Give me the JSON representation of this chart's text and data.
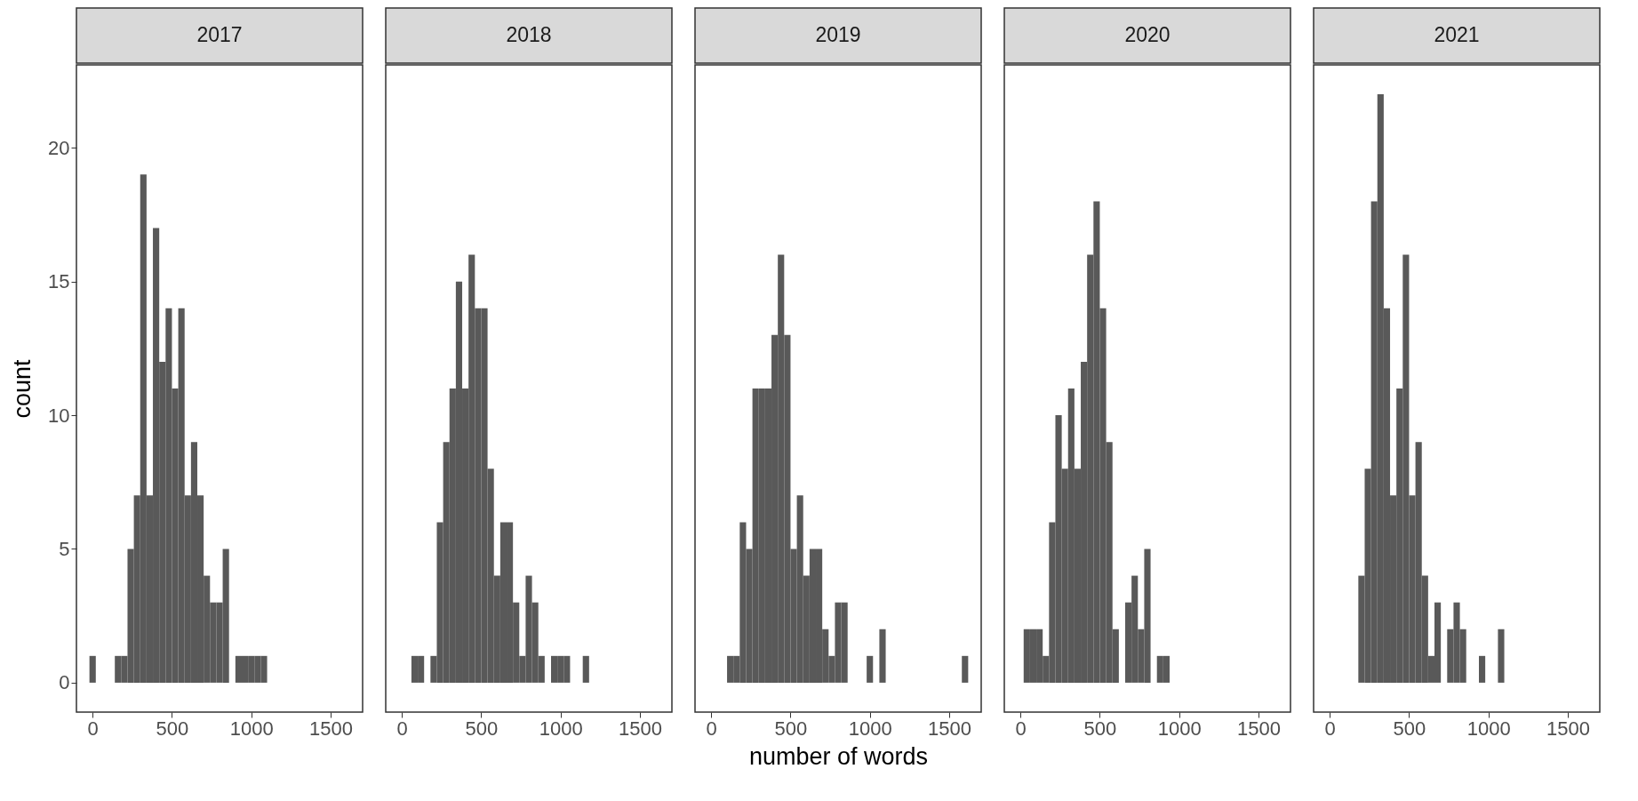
{
  "chart_data": [
    {
      "type": "histogram",
      "title": "2017",
      "ylabel": "count",
      "color": "#595959",
      "bins": [
        -20,
        20,
        60,
        100,
        140,
        180,
        220,
        260,
        300,
        340,
        380,
        420,
        460,
        500,
        540,
        580,
        620,
        660,
        700,
        740,
        780,
        820,
        860,
        900,
        940,
        980,
        1020,
        1060,
        1100
      ],
      "values": [
        1,
        0,
        0,
        0,
        1,
        1,
        5,
        7,
        19,
        7,
        17,
        12,
        14,
        11,
        14,
        7,
        9,
        7,
        4,
        3,
        3,
        5,
        0,
        1,
        1,
        1,
        1,
        1
      ],
      "xlim": [
        -102,
        1702
      ],
      "ylim": [
        -1.1,
        23.1
      ],
      "xticks": [
        0,
        500,
        1000,
        1500
      ],
      "yticks": [
        0,
        5,
        10,
        15,
        20
      ],
      "grid": false
    },
    {
      "type": "histogram",
      "title": "2018",
      "color": "#595959",
      "bins": [
        60,
        100,
        140,
        180,
        220,
        260,
        300,
        340,
        380,
        420,
        460,
        500,
        540,
        580,
        620,
        660,
        700,
        740,
        780,
        820,
        860,
        900,
        940,
        980,
        1020,
        1060,
        1100,
        1140,
        1180
      ],
      "values": [
        1,
        1,
        0,
        1,
        6,
        9,
        11,
        15,
        11,
        16,
        14,
        14,
        8,
        4,
        6,
        6,
        3,
        1,
        4,
        3,
        1,
        0,
        1,
        1,
        1,
        0,
        0,
        1
      ],
      "xlim": [
        -102,
        1702
      ],
      "ylim": [
        -1.1,
        23.1
      ],
      "xticks": [
        0,
        500,
        1000,
        1500
      ],
      "yticks": [
        0,
        5,
        10,
        15,
        20
      ],
      "tick_labels": "x",
      "grid": false
    },
    {
      "type": "histogram",
      "title": "2019",
      "xlabel": "number of words",
      "color": "#595959",
      "bins": [
        100,
        140,
        180,
        220,
        260,
        300,
        340,
        380,
        420,
        460,
        500,
        540,
        580,
        620,
        660,
        700,
        740,
        780,
        820,
        860,
        900,
        940,
        980,
        1020,
        1060,
        1100,
        1140,
        1180,
        1220,
        1260,
        1300,
        1340,
        1380,
        1420,
        1460,
        1500,
        1540,
        1580,
        1620
      ],
      "values": [
        1,
        1,
        6,
        5,
        11,
        11,
        11,
        13,
        16,
        13,
        5,
        7,
        4,
        5,
        5,
        2,
        1,
        3,
        3,
        0,
        0,
        0,
        1,
        0,
        2,
        0,
        0,
        0,
        0,
        0,
        0,
        0,
        0,
        0,
        0,
        0,
        0,
        1
      ],
      "xlim": [
        -102,
        1702
      ],
      "ylim": [
        -1.1,
        23.1
      ],
      "xticks": [
        0,
        500,
        1000,
        1500
      ],
      "yticks": [
        0,
        5,
        10,
        15,
        20
      ],
      "tick_labels": "x",
      "grid": false
    },
    {
      "type": "histogram",
      "title": "2020",
      "color": "#595959",
      "bins": [
        20,
        60,
        100,
        140,
        180,
        220,
        260,
        300,
        340,
        380,
        420,
        460,
        500,
        540,
        580,
        620,
        660,
        700,
        740,
        780,
        820,
        860,
        900,
        940
      ],
      "values": [
        2,
        2,
        2,
        1,
        6,
        10,
        8,
        11,
        8,
        12,
        16,
        18,
        14,
        9,
        2,
        0,
        3,
        4,
        2,
        5,
        0,
        1,
        1
      ],
      "xlim": [
        -102,
        1702
      ],
      "ylim": [
        -1.1,
        23.1
      ],
      "xticks": [
        0,
        500,
        1000,
        1500
      ],
      "yticks": [
        0,
        5,
        10,
        15,
        20
      ],
      "tick_labels": "x",
      "grid": false
    },
    {
      "type": "histogram",
      "title": "2021",
      "color": "#595959",
      "bins": [
        180,
        220,
        260,
        300,
        340,
        380,
        420,
        460,
        500,
        540,
        580,
        620,
        660,
        700,
        740,
        780,
        820,
        860,
        900,
        940,
        980,
        1020,
        1060,
        1100
      ],
      "values": [
        4,
        8,
        18,
        22,
        14,
        7,
        11,
        16,
        7,
        9,
        4,
        1,
        3,
        0,
        2,
        3,
        2,
        0,
        0,
        1,
        0,
        0,
        2
      ],
      "xlim": [
        -102,
        1702
      ],
      "ylim": [
        -1.1,
        23.1
      ],
      "xticks": [
        0,
        500,
        1000,
        1500
      ],
      "yticks": [
        0,
        5,
        10,
        15,
        20
      ],
      "tick_labels": "x",
      "grid": false
    }
  ]
}
